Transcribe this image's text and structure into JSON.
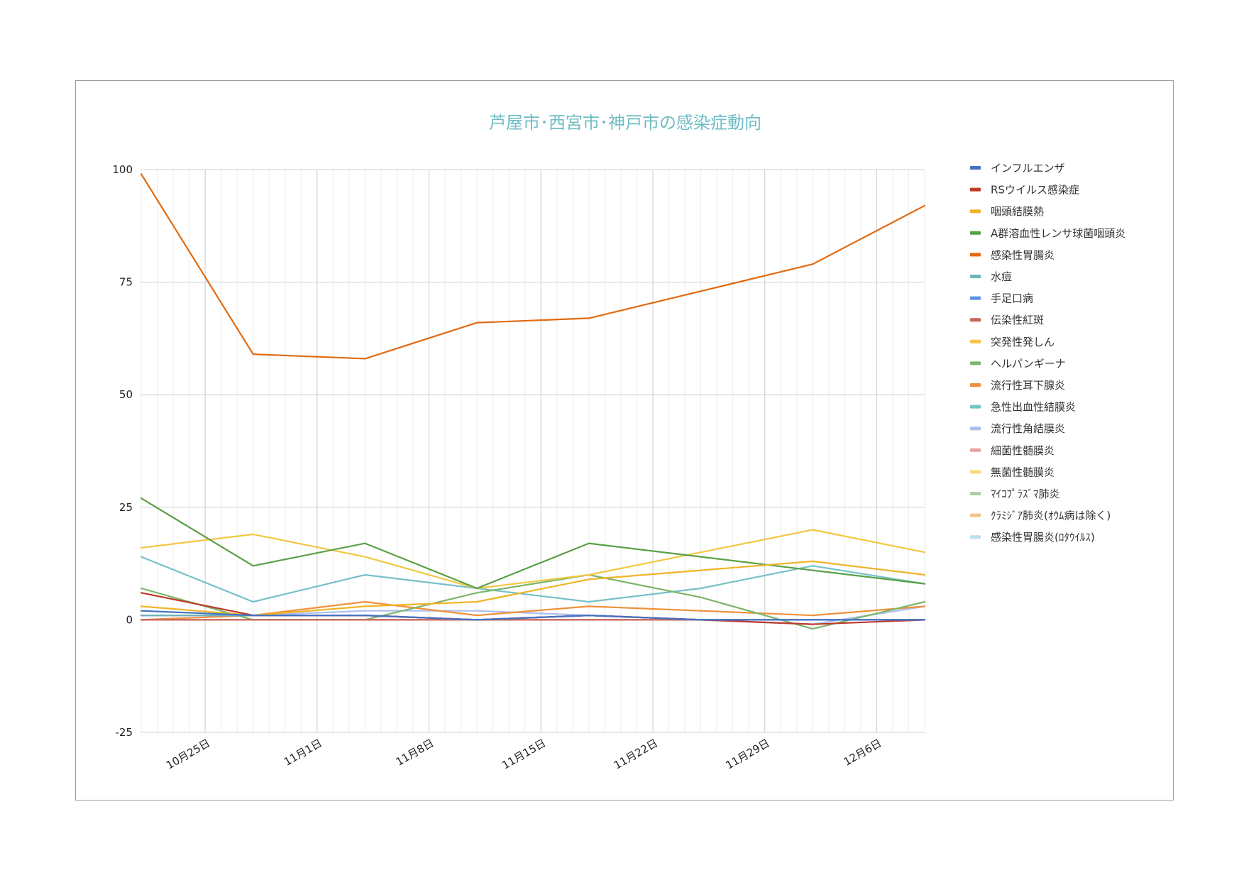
{
  "chart_data": {
    "type": "line",
    "title": "芦屋市･西宮市･神戸市の感染症動向",
    "xlabel": "",
    "ylabel": "",
    "ylim": [
      -25,
      100
    ],
    "yticks": [
      100,
      75,
      50,
      25,
      0,
      -25
    ],
    "x_dates": [
      "2020-10-21",
      "2020-10-28",
      "2020-11-04",
      "2020-11-11",
      "2020-11-18",
      "2020-11-25",
      "2020-12-02",
      "2020-12-09"
    ],
    "x_domain": [
      "2020-10-21",
      "2020-12-09"
    ],
    "x_tick_labels": [
      "10月25日",
      "11月1日",
      "11月8日",
      "11月15日",
      "11月22日",
      "11月29日",
      "12月6日"
    ],
    "x_tick_dates": [
      "2020-10-25",
      "2020-11-01",
      "2020-11-08",
      "2020-11-15",
      "2020-11-22",
      "2020-11-29",
      "2020-12-06"
    ],
    "grid": true,
    "legend_position": "right",
    "series": [
      {
        "name": "インフルエンザ",
        "color": "#4472c4",
        "values": [
          2,
          1,
          1,
          0,
          1,
          0,
          0,
          0
        ]
      },
      {
        "name": "RSウイルス感染症",
        "color": "#c0392b",
        "values": [
          6,
          1,
          1,
          0,
          1,
          0,
          -1,
          0
        ]
      },
      {
        "name": "咽頭結膜熱",
        "color": "#f0b429",
        "values": [
          3,
          1,
          3,
          4,
          9,
          11,
          13,
          10
        ]
      },
      {
        "name": "A群溶血性レンサ球菌咽頭炎",
        "color": "#5aa046",
        "values": [
          27,
          12,
          17,
          7,
          17,
          14,
          11,
          8
        ]
      },
      {
        "name": "感染性胃腸炎",
        "color": "#e06a10",
        "values": [
          99,
          59,
          58,
          66,
          67,
          73,
          79,
          92
        ]
      },
      {
        "name": "水痘",
        "color": "#6cb4ba",
        "values": [
          1,
          1,
          1,
          0,
          1,
          0,
          0,
          0
        ]
      },
      {
        "name": "手足口病",
        "color": "#5b8ee6",
        "values": [
          1,
          1,
          1,
          0,
          1,
          0,
          0,
          0
        ]
      },
      {
        "name": "伝染性紅斑",
        "color": "#c9645a",
        "values": [
          0,
          0,
          0,
          0,
          0,
          0,
          0,
          0
        ]
      },
      {
        "name": "突発性発しん",
        "color": "#f3c743",
        "values": [
          16,
          19,
          14,
          7,
          10,
          15,
          20,
          15
        ]
      },
      {
        "name": "ヘルパンギーナ",
        "color": "#7cb66a",
        "values": [
          7,
          0,
          0,
          6,
          10,
          5,
          -2,
          4
        ]
      },
      {
        "name": "流行性耳下腺炎",
        "color": "#f0903a",
        "values": [
          0,
          1,
          4,
          1,
          3,
          2,
          1,
          3
        ]
      },
      {
        "name": "急性出血性結膜炎",
        "color": "#76c1c7",
        "values": [
          14,
          4,
          10,
          7,
          4,
          7,
          12,
          8
        ]
      },
      {
        "name": "流行性角結膜炎",
        "color": "#aebdf0",
        "values": [
          1,
          1,
          2,
          2,
          1,
          0,
          -1,
          3
        ]
      },
      {
        "name": "細菌性髄膜炎",
        "color": "#eaa0a0",
        "values": [
          0,
          0,
          0,
          0,
          0,
          0,
          0,
          0
        ]
      },
      {
        "name": "無菌性髄膜炎",
        "color": "#f5da7a",
        "values": [
          0,
          0,
          0,
          0,
          0,
          0,
          0,
          0
        ]
      },
      {
        "name": "ﾏｲｺﾌﾟﾗｽﾞﾏ肺炎",
        "color": "#a9d3a0",
        "values": [
          0,
          0,
          0,
          0,
          0,
          0,
          0,
          0
        ]
      },
      {
        "name": "ｸﾗﾐｼﾞｱ肺炎(ｵｳﾑ病は除く)",
        "color": "#f4c18e",
        "values": [
          0,
          0,
          0,
          0,
          0,
          0,
          0,
          0
        ]
      },
      {
        "name": "感染性胃腸炎(ﾛﾀｳｲﾙｽ)",
        "color": "#b7e2e6",
        "values": [
          0,
          0,
          0,
          0,
          0,
          0,
          -1,
          3
        ]
      }
    ]
  }
}
